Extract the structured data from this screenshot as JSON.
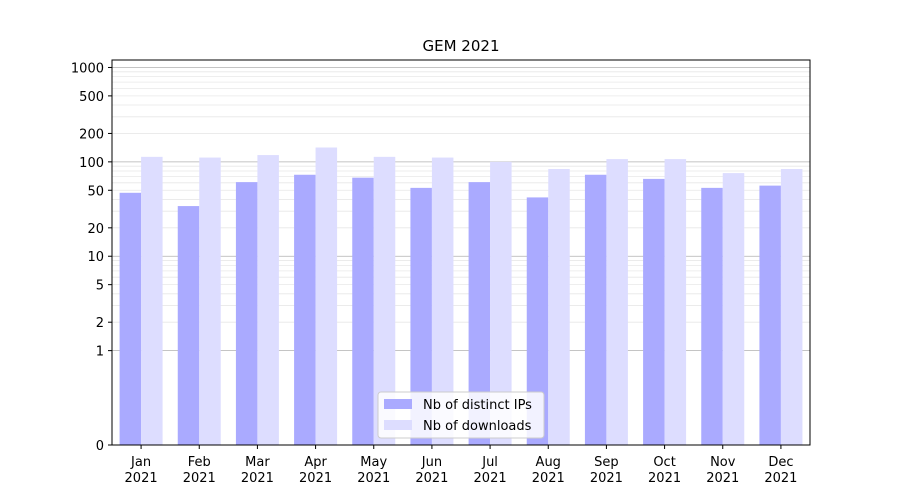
{
  "chart_data": {
    "type": "bar",
    "title": "GEM 2021",
    "xlabel": "",
    "ylabel": "",
    "yscale": "symlog",
    "ylim": [
      0,
      1200
    ],
    "yticks": [
      0,
      1,
      2,
      5,
      10,
      20,
      50,
      100,
      200,
      500,
      1000
    ],
    "ytick_labels": [
      "0",
      "1",
      "2",
      "5",
      "10",
      "20",
      "50",
      "100",
      "200",
      "500",
      "1000"
    ],
    "grid": true,
    "legend_position": "bottom-center",
    "categories": [
      [
        "Jan",
        "2021"
      ],
      [
        "Feb",
        "2021"
      ],
      [
        "Mar",
        "2021"
      ],
      [
        "Apr",
        "2021"
      ],
      [
        "May",
        "2021"
      ],
      [
        "Jun",
        "2021"
      ],
      [
        "Jul",
        "2021"
      ],
      [
        "Aug",
        "2021"
      ],
      [
        "Sep",
        "2021"
      ],
      [
        "Oct",
        "2021"
      ],
      [
        "Nov",
        "2021"
      ],
      [
        "Dec",
        "2021"
      ]
    ],
    "series": [
      {
        "name": "Nb of distinct IPs",
        "color": "#aaaaff",
        "values": [
          47,
          34,
          61,
          73,
          68,
          53,
          61,
          42,
          73,
          66,
          53,
          56
        ]
      },
      {
        "name": "Nb of downloads",
        "color": "#ddddff",
        "values": [
          113,
          111,
          118,
          142,
          113,
          111,
          100,
          84,
          107,
          107,
          76,
          84
        ]
      }
    ]
  }
}
